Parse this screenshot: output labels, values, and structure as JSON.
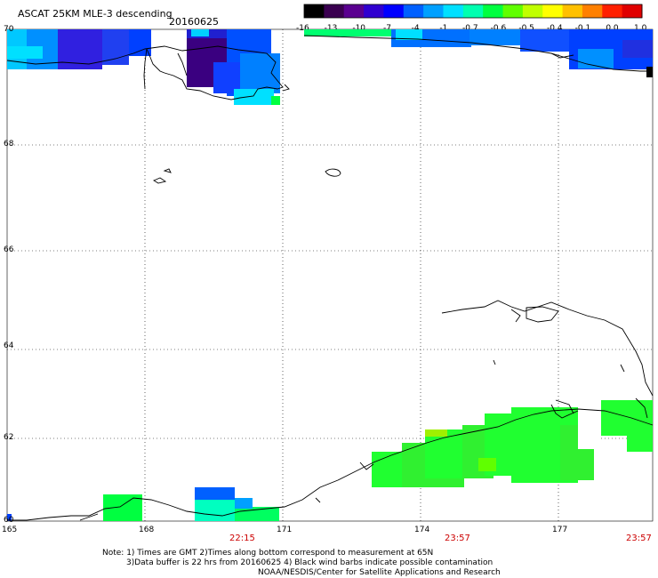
{
  "header": {
    "title": "ASCAT 25KM MLE-3 descending",
    "date": "20160625"
  },
  "colorbar": {
    "ticks": [
      "-16",
      "-13",
      "-10",
      "-7",
      "-4",
      "-1",
      "-0.7",
      "-0.6",
      "-0.5",
      "-0.4",
      "-0.1",
      "0.0",
      "1.0"
    ],
    "colors": [
      "#000000",
      "#3a0050",
      "#5a0090",
      "#3000d0",
      "#0000ff",
      "#0060ff",
      "#00a0ff",
      "#00e0ff",
      "#00ffb0",
      "#00ff40",
      "#60ff00",
      "#c0ff00",
      "#ffff00",
      "#ffc000",
      "#ff8000",
      "#ff2000",
      "#e00000"
    ]
  },
  "map": {
    "lat_labels": [
      "70",
      "68",
      "66",
      "64",
      "62",
      "60"
    ],
    "lon_labels": [
      "165",
      "168",
      "171",
      "174",
      "177"
    ],
    "times": [
      "22:15",
      "23:57",
      "23:57"
    ]
  },
  "notes": {
    "line1": "Note: 1) Times are GMT 2)Times along bottom correspond to measurement at 65N",
    "line2": "3)Data buffer is 22 hrs from 20160625 4) Black wind barbs indicate possible contamination",
    "line3": "NOAA/NESDIS/Center for Satellite Applications and Research"
  }
}
